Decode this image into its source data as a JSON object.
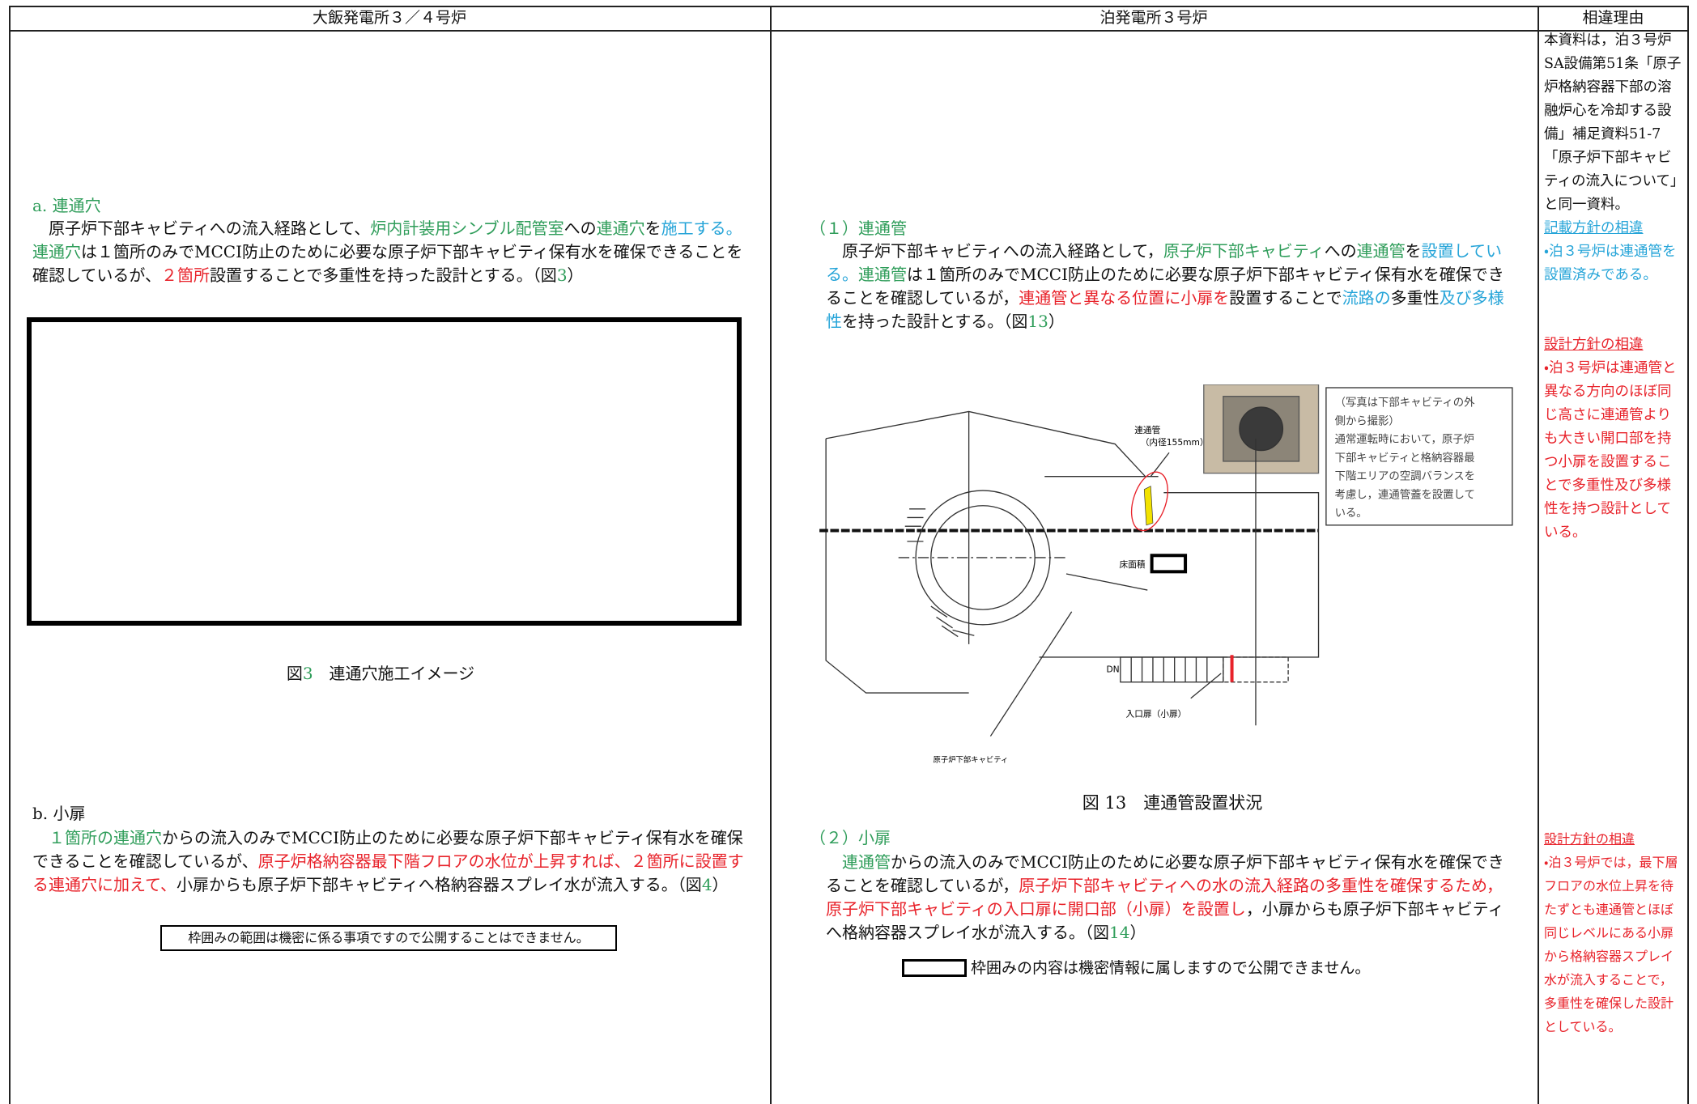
{
  "header": {
    "columns": [
      "大飯発電所３／４号炉",
      "泊発電所３号炉",
      "相違理由"
    ]
  },
  "left": {
    "section_a": {
      "heading": [
        {
          "text": "a. 連通穴",
          "color": "#2f9d5a"
        }
      ],
      "body": [
        {
          "text": "原子炉下部キャビティへの流入経路として、",
          "color": "#111111"
        },
        {
          "text": "炉内計装用シンブル配管室",
          "color": "#2f9d5a"
        },
        {
          "text": "への",
          "color": "#111111"
        },
        {
          "text": "連通穴",
          "color": "#2f9d5a"
        },
        {
          "text": "を",
          "color": "#111111"
        },
        {
          "text": "施工する。",
          "color": "#25a4d8"
        },
        {
          "text": "連通穴",
          "color": "#2f9d5a"
        },
        {
          "text": "は１箇所のみでMCCI防止のために必要な原子炉下部キャビティ保有水を確保できることを確認しているが、",
          "color": "#111111"
        },
        {
          "text": "２箇所",
          "color": "#e8222a"
        },
        {
          "text": "設置することで多重性を持った設計とする。（図",
          "color": "#111111"
        },
        {
          "text": "3",
          "color": "#2f9d5a"
        },
        {
          "text": "）",
          "color": "#111111"
        }
      ],
      "caption": [
        {
          "text": "図",
          "color": "#111111"
        },
        {
          "text": "3",
          "color": "#2f9d5a"
        },
        {
          "text": "　連通穴施工イメージ",
          "color": "#111111"
        }
      ]
    },
    "section_b": {
      "heading": [
        {
          "text": "b. 小扉",
          "color": "#111111"
        }
      ],
      "body": [
        {
          "text": "１箇所の連通穴",
          "color": "#2f9d5a"
        },
        {
          "text": "からの流入のみでMCCI防止のために必要な原子炉下部キャビティ保有水を確保できることを確認しているが、",
          "color": "#111111"
        },
        {
          "text": "原子炉格納容器最下階フロアの水位が上昇すれば、２箇所に設置する連通穴に加えて、",
          "color": "#e8222a"
        },
        {
          "text": "小扉からも原子炉下部キャビティへ格納容器スプレイ水が流入する。（図",
          "color": "#111111"
        },
        {
          "text": "4",
          "color": "#2f9d5a"
        },
        {
          "text": "）",
          "color": "#111111"
        }
      ],
      "note": "枠囲みの範囲は機密に係る事項ですので公開することはできません。"
    }
  },
  "middle": {
    "section_1": {
      "heading": [
        {
          "text": "（１）連通管",
          "color": "#2f9d5a"
        }
      ],
      "body": [
        {
          "text": "原子炉下部キャビティへの流入経路として，",
          "color": "#111111"
        },
        {
          "text": "原子炉下部キャビティ",
          "color": "#2f9d5a"
        },
        {
          "text": "への",
          "color": "#111111"
        },
        {
          "text": "連通管",
          "color": "#2f9d5a"
        },
        {
          "text": "を",
          "color": "#111111"
        },
        {
          "text": "設置している。",
          "color": "#25a4d8"
        },
        {
          "text": "連通管",
          "color": "#2f9d5a"
        },
        {
          "text": "は１箇所のみでMCCI防止のために必要な原子炉下部キャビティ保有水を確保できることを確認しているが，",
          "color": "#111111"
        },
        {
          "text": "連通管と異なる位置に小扉を",
          "color": "#e8222a"
        },
        {
          "text": "設置することで",
          "color": "#111111"
        },
        {
          "text": "流路の",
          "color": "#25a4d8"
        },
        {
          "text": "多重性",
          "color": "#111111"
        },
        {
          "text": "及び多様性",
          "color": "#25a4d8"
        },
        {
          "text": "を持った設計とする。（図",
          "color": "#111111"
        },
        {
          "text": "13",
          "color": "#2f9d5a"
        },
        {
          "text": "）",
          "color": "#111111"
        }
      ],
      "figure": {
        "pipe_label": "連通管",
        "pipe_size": "（内径155mm）",
        "floor_label": "床面積",
        "dn_label": "DN",
        "door_label": "入口扉（小扉）",
        "cavity_label": "原子炉下部キャビティ",
        "callout": [
          "（写真は下部キャビティの外",
          "側から撮影）",
          "通常運転時において，原子炉",
          "下部キャビティと格納容器最",
          "下階エリアの空調バランスを",
          "考慮し，連通管蓋を設置して",
          "いる。"
        ]
      },
      "caption": "図 13　連通管設置状況"
    },
    "section_2": {
      "heading": [
        {
          "text": "（２）小扉",
          "color": "#2f9d5a"
        }
      ],
      "body": [
        {
          "text": "連通管",
          "color": "#2f9d5a"
        },
        {
          "text": "からの流入のみでMCCI防止のために必要な原子炉下部キャビティ保有水を確保できることを確認しているが，",
          "color": "#111111"
        },
        {
          "text": "原子炉下部キャビティへの水の流入経路の多重性を確保するため，原子炉下部キャビティの入口扉に開口部（小扉）を設置し",
          "color": "#e8222a"
        },
        {
          "text": "，小扉からも原子炉下部キャビティへ格納容器スプレイ水が流入する。（図",
          "color": "#111111"
        },
        {
          "text": "14",
          "color": "#2f9d5a"
        },
        {
          "text": "）",
          "color": "#111111"
        }
      ],
      "note": "枠囲みの内容は機密情報に属しますので公開できません。"
    }
  },
  "right": {
    "intro": "本資料は，泊３号炉SA設備第51条「原子炉格納容器下部の溶融炉心を冷却する設備」補足資料51-7「原子炉下部キャビティの流入について」と同一資料。",
    "reasons": [
      {
        "title": "記載方針の相違",
        "text": "・泊３号炉は連通管を設置済みである。",
        "color": "#25a4d8"
      },
      {
        "title": "設計方針の相違",
        "text": "・泊３号炉は連通管と異なる方向のほぼ同じ高さに連通管よりも大きい開口部を持つ小扉を設置することで多重性及び多様性を持つ設計としている。",
        "color": "#e8222a"
      },
      {
        "title": "設計方針の相違",
        "text": "・泊３号炉では，最下層フロアの水位上昇を待たずとも連通管とほぼ同じレベルにある小扉から格納容器スプレイ水が流入することで，多重性を確保した設計としている。",
        "color": "#e8222a"
      }
    ]
  }
}
